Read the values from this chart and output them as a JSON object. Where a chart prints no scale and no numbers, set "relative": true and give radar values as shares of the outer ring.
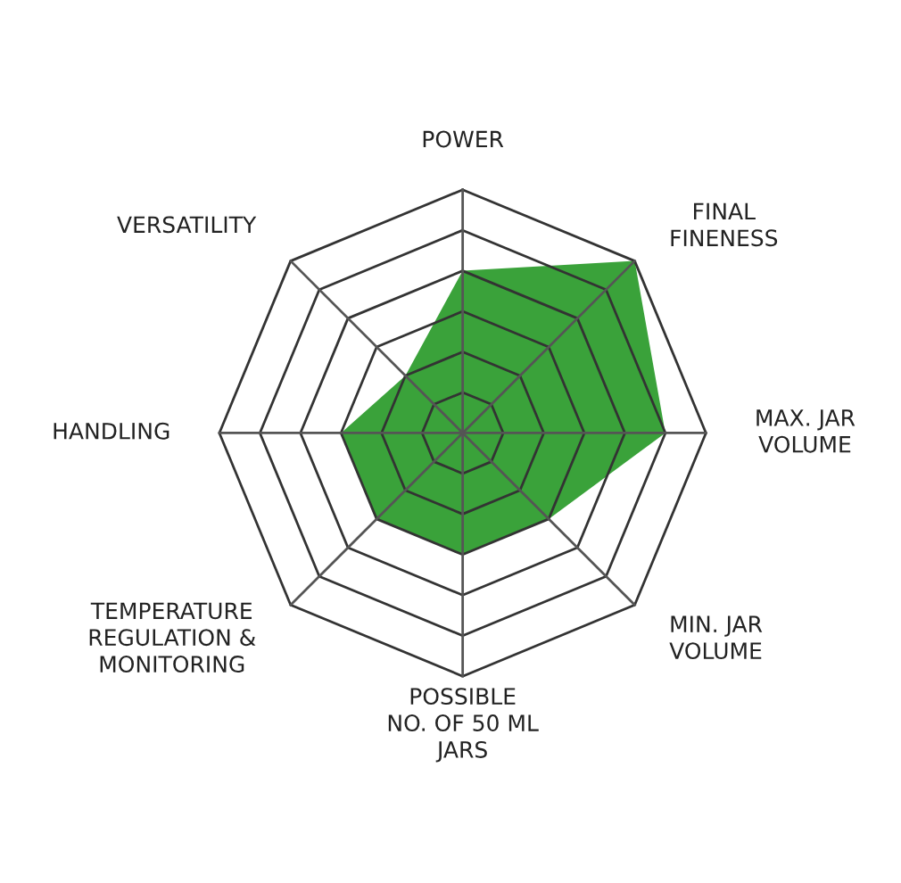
{
  "chart_data": {
    "type": "radar",
    "relative": true,
    "grid": true,
    "categories": [
      "POWER",
      "FINAL\nFINENESS",
      "MAX. JAR\nVOLUME",
      "MIN. JAR\nVOLUME",
      "POSSIBLE\nNO. OF 50 ML\nJARS",
      "TEMPERATURE\nREGULATION &\nMONITORING",
      "HANDLING",
      "VERSATILITY"
    ],
    "series": [
      {
        "color": "#3aa23a",
        "values": [
          0.667,
          1.0,
          0.833,
          0.5,
          0.5,
          0.5,
          0.5,
          0.333
        ]
      }
    ]
  }
}
